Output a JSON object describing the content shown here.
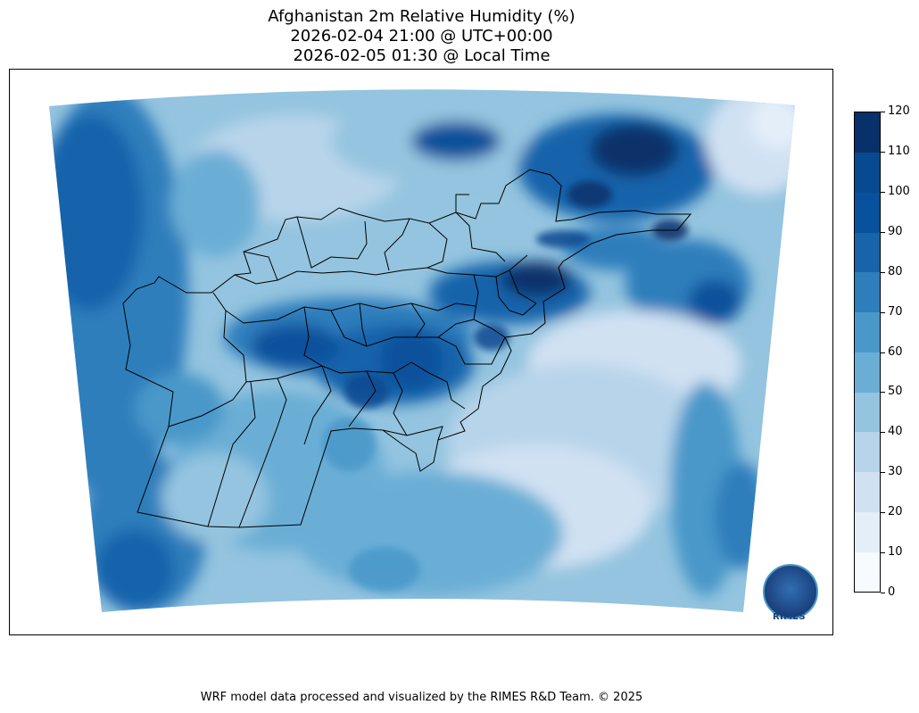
{
  "title": {
    "line1": "Afghanistan 2m Relative Humidity (%)",
    "line2": "2026-02-04 21:00 @ UTC+00:00",
    "line3": "2026-02-05 01:30 @ Local Time"
  },
  "colorbar": {
    "ticks": [
      "0",
      "10",
      "20",
      "30",
      "40",
      "50",
      "60",
      "70",
      "80",
      "90",
      "100",
      "110",
      "120"
    ],
    "colors": [
      "#f7fbff",
      "#e3eef9",
      "#d0e1f2",
      "#b7d4ea",
      "#94c4df",
      "#6aaed6",
      "#4a98c9",
      "#2e7ebc",
      "#1764ab",
      "#08519c",
      "#084a91",
      "#08306b"
    ]
  },
  "logo": {
    "text": "RIMES"
  },
  "footer": "WRF model data processed and visualized by the RIMES R&D Team. © 2025"
}
